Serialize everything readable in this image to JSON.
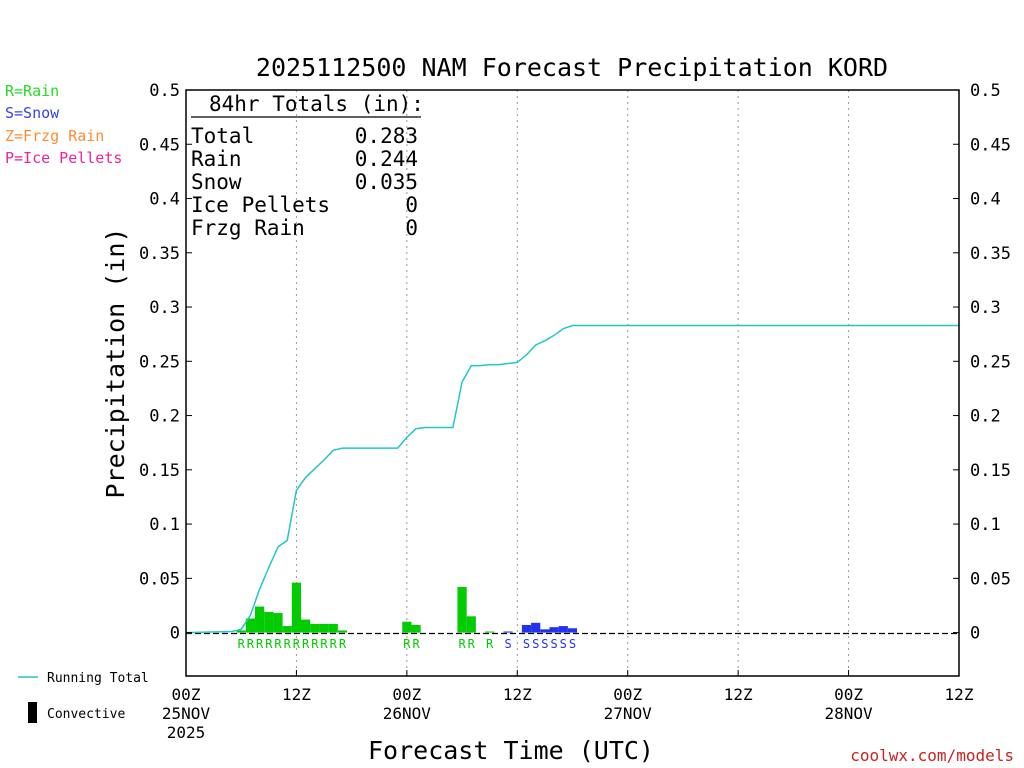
{
  "chart_data": {
    "type": "bar+line",
    "title": "2025112500 NAM Forecast Precipitation KORD",
    "xlabel": "Forecast Time (UTC)",
    "ylabel": "Precipitation (in)",
    "ylim": [
      -0.04,
      0.5
    ],
    "xlim_hours": [
      0,
      84
    ],
    "y_ticks": [
      {
        "v": 0.5,
        "label": "0.5"
      },
      {
        "v": 0.45,
        "label": "0.45"
      },
      {
        "v": 0.4,
        "label": "0.4"
      },
      {
        "v": 0.35,
        "label": "0.35"
      },
      {
        "v": 0.3,
        "label": "0.3"
      },
      {
        "v": 0.25,
        "label": "0.25"
      },
      {
        "v": 0.2,
        "label": "0.2"
      },
      {
        "v": 0.15,
        "label": "0.15"
      },
      {
        "v": 0.1,
        "label": "0.1"
      },
      {
        "v": 0.05,
        "label": "0.05"
      },
      {
        "v": 0,
        "label": "0"
      }
    ],
    "x_ticks": [
      {
        "h": 0,
        "lines": [
          "00Z",
          "25NOV",
          "2025"
        ]
      },
      {
        "h": 12,
        "lines": [
          "12Z"
        ]
      },
      {
        "h": 24,
        "lines": [
          "00Z",
          "26NOV"
        ]
      },
      {
        "h": 36,
        "lines": [
          "12Z"
        ]
      },
      {
        "h": 48,
        "lines": [
          "00Z",
          "27NOV"
        ]
      },
      {
        "h": 60,
        "lines": [
          "12Z"
        ]
      },
      {
        "h": 72,
        "lines": [
          "00Z",
          "28NOV"
        ]
      },
      {
        "h": 84,
        "lines": [
          "12Z"
        ]
      }
    ],
    "gridlines_hours": [
      12,
      24,
      36,
      48,
      60,
      72
    ],
    "bars": [
      {
        "h": 6,
        "value": 0.002,
        "type": "R"
      },
      {
        "h": 7,
        "value": 0.013,
        "type": "R"
      },
      {
        "h": 8,
        "value": 0.024,
        "type": "R"
      },
      {
        "h": 9,
        "value": 0.019,
        "type": "R"
      },
      {
        "h": 10,
        "value": 0.018,
        "type": "R"
      },
      {
        "h": 11,
        "value": 0.006,
        "type": "R"
      },
      {
        "h": 12,
        "value": 0.046,
        "type": "R"
      },
      {
        "h": 13,
        "value": 0.012,
        "type": "R"
      },
      {
        "h": 14,
        "value": 0.008,
        "type": "R"
      },
      {
        "h": 15,
        "value": 0.008,
        "type": "R"
      },
      {
        "h": 16,
        "value": 0.008,
        "type": "R"
      },
      {
        "h": 17,
        "value": 0.002,
        "type": "R"
      },
      {
        "h": 24,
        "value": 0.01,
        "type": "R"
      },
      {
        "h": 25,
        "value": 0.007,
        "type": "R"
      },
      {
        "h": 30,
        "value": 0.042,
        "type": "R"
      },
      {
        "h": 31,
        "value": 0.015,
        "type": "R"
      },
      {
        "h": 33,
        "value": 0.001,
        "type": "R"
      },
      {
        "h": 35,
        "value": 0.001,
        "type": "S"
      },
      {
        "h": 37,
        "value": 0.007,
        "type": "S"
      },
      {
        "h": 38,
        "value": 0.009,
        "type": "S"
      },
      {
        "h": 39,
        "value": 0.003,
        "type": "S"
      },
      {
        "h": 40,
        "value": 0.005,
        "type": "S"
      },
      {
        "h": 41,
        "value": 0.006,
        "type": "S"
      },
      {
        "h": 42,
        "value": 0.004,
        "type": "S"
      }
    ],
    "markers": [
      {
        "h": 6,
        "label": "R"
      },
      {
        "h": 7,
        "label": "R"
      },
      {
        "h": 8,
        "label": "R"
      },
      {
        "h": 9,
        "label": "R"
      },
      {
        "h": 10,
        "label": "R"
      },
      {
        "h": 11,
        "label": "R"
      },
      {
        "h": 12,
        "label": "R"
      },
      {
        "h": 13,
        "label": "R"
      },
      {
        "h": 14,
        "label": "R"
      },
      {
        "h": 15,
        "label": "R"
      },
      {
        "h": 16,
        "label": "R"
      },
      {
        "h": 17,
        "label": "R"
      },
      {
        "h": 24,
        "label": "R"
      },
      {
        "h": 25,
        "label": "R"
      },
      {
        "h": 30,
        "label": "R"
      },
      {
        "h": 31,
        "label": "R"
      },
      {
        "h": 33,
        "label": "R"
      },
      {
        "h": 35,
        "label": "S"
      },
      {
        "h": 37,
        "label": "S"
      },
      {
        "h": 38,
        "label": "S"
      },
      {
        "h": 39,
        "label": "S"
      },
      {
        "h": 40,
        "label": "S"
      },
      {
        "h": 41,
        "label": "S"
      },
      {
        "h": 42,
        "label": "S"
      }
    ],
    "running_total": [
      [
        0,
        0
      ],
      [
        5,
        0.001
      ],
      [
        6,
        0.003
      ],
      [
        7,
        0.016
      ],
      [
        8,
        0.04
      ],
      [
        9,
        0.06
      ],
      [
        10,
        0.079
      ],
      [
        11,
        0.085
      ],
      [
        12,
        0.131
      ],
      [
        13,
        0.143
      ],
      [
        14,
        0.151
      ],
      [
        15,
        0.159
      ],
      [
        16,
        0.168
      ],
      [
        17,
        0.17
      ],
      [
        23,
        0.17
      ],
      [
        24,
        0.18
      ],
      [
        25,
        0.188
      ],
      [
        26,
        0.189
      ],
      [
        29,
        0.189
      ],
      [
        30,
        0.231
      ],
      [
        31,
        0.246
      ],
      [
        32,
        0.246
      ],
      [
        33,
        0.247
      ],
      [
        34,
        0.247
      ],
      [
        35,
        0.248
      ],
      [
        36,
        0.249
      ],
      [
        37,
        0.256
      ],
      [
        38,
        0.265
      ],
      [
        39,
        0.269
      ],
      [
        40,
        0.274
      ],
      [
        41,
        0.28
      ],
      [
        42,
        0.283
      ],
      [
        84,
        0.283
      ]
    ],
    "totals_box": {
      "heading": "84hr Totals (in):",
      "rows": [
        {
          "label": "Total",
          "value": "0.283"
        },
        {
          "label": "Rain",
          "value": "0.244"
        },
        {
          "label": "Snow",
          "value": "0.035"
        },
        {
          "label": "Ice Pellets",
          "value": "0"
        },
        {
          "label": "Frzg Rain",
          "value": "0"
        }
      ]
    },
    "type_legend": [
      {
        "text": "R=Rain",
        "color": "#22dd22"
      },
      {
        "text": "S=Snow",
        "color": "#3344ee"
      },
      {
        "text": "Z=Frzg Rain",
        "color": "#ff8c33"
      },
      {
        "text": "P=Ice Pellets",
        "color": "#ee2299"
      }
    ],
    "series_legend": [
      {
        "text": "Running Total",
        "symbol": "line",
        "color": "#22c7c7"
      },
      {
        "text": "Convective",
        "symbol": "bar",
        "color": "#000000"
      }
    ],
    "colors": {
      "rain": "#00cc00",
      "snow": "#2233ee",
      "line": "#22c7c7",
      "grid": "#999999"
    },
    "credit": "coolwx.com/models"
  }
}
